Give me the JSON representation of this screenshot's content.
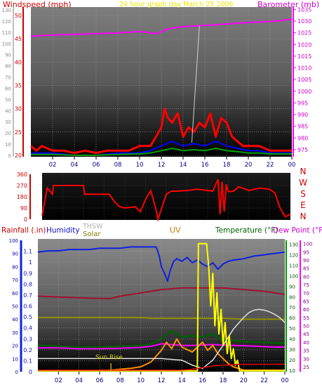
{
  "header": {
    "title": "24 hour graph day   March 25 2006",
    "left_label": "Windspeed (mph)",
    "right_label": "Barometer (mb)"
  },
  "colors": {
    "windspeed": "#ff0000",
    "gust": "#ff0000",
    "barometer": "#ff00ff",
    "green_series": "#00a000",
    "blue_series": "#0000ff",
    "rainfall": "#ff0000",
    "humidity": "#1020e0",
    "thsw": "#c0c0c0",
    "solar": "#808000",
    "uv": "#ffff00",
    "temperature": "#00a000",
    "dew_point": "#ff00ff",
    "title": "#ffff00",
    "title_uv": "#c08000",
    "sunrise": "#c0c000"
  },
  "chart_data": [
    {
      "type": "line",
      "name": "wind-barometer",
      "title": "24 hour graph day   March 25 2006",
      "xlabel": "",
      "ylabel_left": "Windspeed (mph)",
      "ylabel_right": "Barometer (mb)",
      "x_ticks": [
        "02",
        "04",
        "06",
        "08",
        "10",
        "12",
        "14",
        "16",
        "18",
        "20",
        "22",
        "00"
      ],
      "x_range_hours": [
        0,
        24
      ],
      "y_left_ticks": [
        20,
        25,
        30,
        35,
        40,
        45,
        50
      ],
      "y_left_range": [
        20,
        50
      ],
      "y_left_alt_ticks": [
        0,
        10,
        20,
        30,
        40,
        50,
        60,
        70,
        80,
        90,
        100,
        110,
        120,
        130
      ],
      "y_right_ticks": [
        975,
        980,
        985,
        990,
        995,
        1000,
        1005,
        1010,
        1015,
        1020,
        1025,
        1030,
        1035
      ],
      "y_right_range": [
        972,
        1036
      ],
      "series": [
        {
          "name": "Barometer",
          "axis": "right",
          "x": [
            0,
            2,
            4,
            6,
            8,
            10,
            11,
            11.5,
            12,
            12.5,
            13,
            14,
            15,
            16,
            17,
            18,
            19,
            20,
            21,
            22,
            23,
            24
          ],
          "y": [
            1023.5,
            1024.0,
            1024.3,
            1024.6,
            1024.9,
            1025.5,
            1025.0,
            1024.6,
            1025.4,
            1026.5,
            1027.0,
            1027.6,
            1027.9,
            1028.1,
            1028.4,
            1028.7,
            1029.1,
            1029.4,
            1029.6,
            1029.8,
            1030.2,
            1030.8
          ]
        },
        {
          "name": "Wind gust",
          "axis": "left",
          "x": [
            0,
            0.5,
            1,
            2,
            3,
            4,
            5,
            6,
            7,
            8,
            9,
            10,
            11,
            11.5,
            12,
            12.3,
            12.6,
            13,
            13.5,
            14,
            14.5,
            15,
            15.5,
            16,
            16.5,
            17,
            17.5,
            18,
            18.5,
            19,
            19.5,
            20,
            21,
            22,
            23,
            24
          ],
          "y": [
            22,
            21,
            22,
            21,
            21,
            20.5,
            21,
            20.5,
            21,
            21,
            21,
            22,
            22,
            24,
            26,
            30,
            28,
            27,
            29,
            24,
            26,
            25,
            27,
            26,
            29,
            24,
            28,
            27,
            24,
            23,
            22,
            22,
            22,
            21,
            21,
            21
          ]
        },
        {
          "name": "Wind speed",
          "axis": "left",
          "x": [
            0,
            2,
            4,
            6,
            8,
            10,
            11,
            12,
            13,
            14,
            15,
            16,
            17,
            18,
            19,
            20,
            21,
            22,
            23,
            24
          ],
          "y": [
            20.5,
            20.5,
            20,
            20,
            20.5,
            20.5,
            21,
            22,
            23,
            22,
            22.5,
            22,
            23,
            22,
            21.5,
            21,
            21,
            20.5,
            20.5,
            20.5
          ]
        },
        {
          "name": "Wind average",
          "axis": "left",
          "x": [
            0,
            2,
            4,
            6,
            8,
            10,
            11,
            12,
            13,
            14,
            15,
            16,
            17,
            18,
            19,
            20,
            21,
            22,
            23,
            24
          ],
          "y": [
            20.2,
            20.2,
            20,
            20,
            20.2,
            20.3,
            20.5,
            21,
            21.5,
            21,
            21.2,
            21,
            21.5,
            21,
            20.8,
            20.5,
            20.5,
            20.3,
            20.3,
            20.3
          ]
        }
      ]
    },
    {
      "type": "line",
      "name": "wind-direction",
      "y_ticks": [
        0,
        45,
        90,
        135,
        180,
        225,
        270,
        315,
        360
      ],
      "y_range": [
        0,
        360
      ],
      "direction_labels": [
        "N",
        "W",
        "S",
        "E",
        "N"
      ],
      "series": [
        {
          "name": "Wind direction",
          "x": [
            0,
            0.5,
            1,
            1.1,
            2,
            3,
            4,
            4.1,
            5,
            6,
            6.5,
            7,
            7.5,
            8,
            9,
            9.5,
            10,
            10.5,
            11,
            11.2,
            12,
            12.5,
            13,
            14,
            15,
            16,
            16.5,
            17,
            17.2,
            17.4,
            17.6,
            17.8,
            18,
            18.5,
            19,
            20,
            21,
            22,
            22.5,
            23,
            23.5,
            24
          ],
          "y": [
            30,
            250,
            200,
            270,
            270,
            270,
            270,
            200,
            200,
            200,
            200,
            140,
            100,
            90,
            100,
            60,
            160,
            230,
            80,
            0,
            200,
            225,
            225,
            230,
            240,
            230,
            225,
            320,
            40,
            300,
            60,
            280,
            220,
            225,
            260,
            230,
            250,
            240,
            210,
            90,
            20,
            40
          ]
        }
      ]
    },
    {
      "type": "line",
      "name": "temperature-humidity",
      "legend_labels": [
        "Rainfall (.in)",
        "Humidity",
        "THSW",
        "Solar",
        "UV",
        "Temperature (°F)",
        "Dew Point (°F)"
      ],
      "x_ticks": [
        "02",
        "04",
        "06",
        "08",
        "10",
        "12",
        "14",
        "16",
        "18",
        "20",
        "22",
        "00"
      ],
      "y_left_ticks": [
        0,
        0.1,
        0.2,
        0.3,
        0.4,
        0.5,
        0.6,
        0.7,
        0.8,
        0.9,
        1,
        1.1
      ],
      "y_left_range": [
        0,
        1.2
      ],
      "y_left_alt_ticks": [
        0,
        10,
        20,
        30,
        40,
        50,
        60,
        70,
        80,
        90,
        100
      ],
      "y_mid_ticks": [
        10,
        20,
        30,
        40,
        50,
        60,
        70,
        80,
        90,
        100,
        110,
        120,
        130
      ],
      "y_right_ticks": [
        25,
        30,
        35,
        40,
        45,
        50,
        55,
        60,
        65,
        70,
        75,
        80,
        85,
        90,
        95,
        100
      ],
      "y_right_range": [
        22,
        102
      ],
      "annotation": "Sun Rise",
      "series": [
        {
          "name": "Humidity",
          "axis": "pct",
          "x": [
            0,
            1,
            2,
            3,
            4,
            5,
            6,
            7,
            8,
            9,
            10,
            11,
            11.5,
            11.8,
            12,
            12.3,
            12.6,
            12.9,
            13.2,
            13.5,
            14,
            14.5,
            15,
            15.5,
            16,
            16.5,
            17,
            17.5,
            18,
            18.5,
            19,
            20,
            21,
            22,
            23,
            24
          ],
          "y": [
            91,
            92,
            92,
            93,
            93,
            93,
            94,
            94,
            94,
            95,
            95,
            95,
            95,
            88,
            80,
            75,
            69,
            78,
            84,
            86,
            84,
            87,
            83,
            85,
            82,
            80,
            83,
            78,
            82,
            84,
            85,
            86,
            88,
            89,
            90,
            91
          ]
        },
        {
          "name": "Temperature",
          "axis": "temp",
          "x": [
            0,
            2,
            4,
            6,
            8,
            10,
            11,
            12,
            13,
            14,
            15,
            16,
            17,
            18,
            19,
            20,
            21,
            22,
            23,
            24
          ],
          "y": [
            38,
            37.5,
            37,
            37,
            37.5,
            38,
            39,
            42,
            47,
            43,
            44,
            43,
            45,
            41,
            41,
            40.5,
            40,
            40,
            39.5,
            39.5
          ]
        },
        {
          "name": "Dew Point",
          "axis": "temp",
          "x": [
            0,
            2,
            4,
            6,
            8,
            10,
            11,
            12,
            13,
            14,
            15,
            16,
            17,
            18,
            19,
            20,
            21,
            22,
            23,
            24
          ],
          "y": [
            36.5,
            36.5,
            36,
            36,
            36.3,
            36.8,
            37.5,
            39,
            38.5,
            38,
            38,
            38.3,
            38.5,
            38.2,
            38,
            37.8,
            37.6,
            37.3,
            37,
            37
          ]
        },
        {
          "name": "THSW",
          "axis": "temp",
          "x": [
            0,
            2,
            4,
            6,
            8,
            10,
            12,
            14,
            15,
            16,
            17,
            18,
            19,
            20,
            20.5,
            21,
            21.5,
            22,
            22.5,
            23,
            23.5,
            24
          ],
          "y": [
            30,
            30,
            30,
            30,
            30,
            30,
            30,
            29,
            26,
            24,
            29,
            38,
            48,
            55,
            58,
            59.5,
            60,
            59.5,
            58.5,
            57,
            55,
            52
          ]
        },
        {
          "name": "Solar",
          "axis": "temp",
          "x": [
            0,
            5,
            10,
            11,
            12,
            14,
            16,
            18,
            20,
            22,
            24
          ],
          "y": [
            55,
            55,
            55,
            54.5,
            54.5,
            54.5,
            54.5,
            54.5,
            54,
            54,
            54
          ]
        },
        {
          "name": "UV",
          "axis": "temp",
          "x": [
            0,
            15.5,
            15.6,
            15.8,
            16.4,
            16.6,
            16.8,
            17,
            17.2,
            17.4,
            17.6,
            17.8,
            18,
            18.2,
            18.4,
            18.6,
            18.8,
            19,
            19.2,
            19.4,
            19.6,
            24
          ],
          "y": [
            22.5,
            22.5,
            100,
            100,
            100,
            86,
            62,
            82,
            50,
            70,
            45,
            60,
            38,
            52,
            33,
            44,
            30,
            36,
            26,
            29,
            22.5,
            22.5
          ]
        },
        {
          "name": "Solar radiation",
          "axis": "temp",
          "x": [
            6,
            7,
            8,
            9,
            10,
            11,
            12,
            12.5,
            13,
            13.5,
            14,
            15,
            16,
            16.5,
            17,
            17.5,
            18,
            18.5,
            19,
            20,
            24
          ],
          "y": [
            23,
            23,
            23.5,
            24,
            25,
            28,
            35,
            40,
            36,
            42,
            37,
            34,
            40,
            35,
            38,
            33,
            30,
            27,
            25,
            23,
            23
          ]
        },
        {
          "name": "Indoor",
          "axis": "temp",
          "x": [
            0,
            4,
            7,
            8,
            10,
            12,
            14,
            16,
            18,
            20,
            22,
            24
          ],
          "y": [
            68,
            67,
            66.5,
            68,
            70,
            72,
            73,
            73,
            73,
            72,
            71,
            69
          ]
        }
      ]
    }
  ]
}
